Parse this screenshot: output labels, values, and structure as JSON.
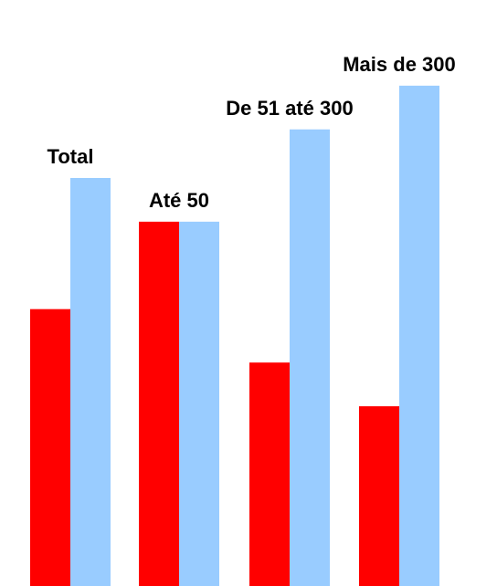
{
  "chart_data": {
    "type": "bar",
    "title": "",
    "xlabel": "",
    "ylabel": "",
    "categories": [
      "Total",
      "Até 50",
      "De 51 até 300",
      "Mais de 300"
    ],
    "series": [
      {
        "color": "#ff0000",
        "values": [
          57,
          75,
          46,
          37
        ]
      },
      {
        "color": "#99ccff",
        "values": [
          84,
          75,
          94,
          103
        ]
      }
    ],
    "ylim": [
      0,
      115
    ],
    "grid": false,
    "legend": "none"
  }
}
